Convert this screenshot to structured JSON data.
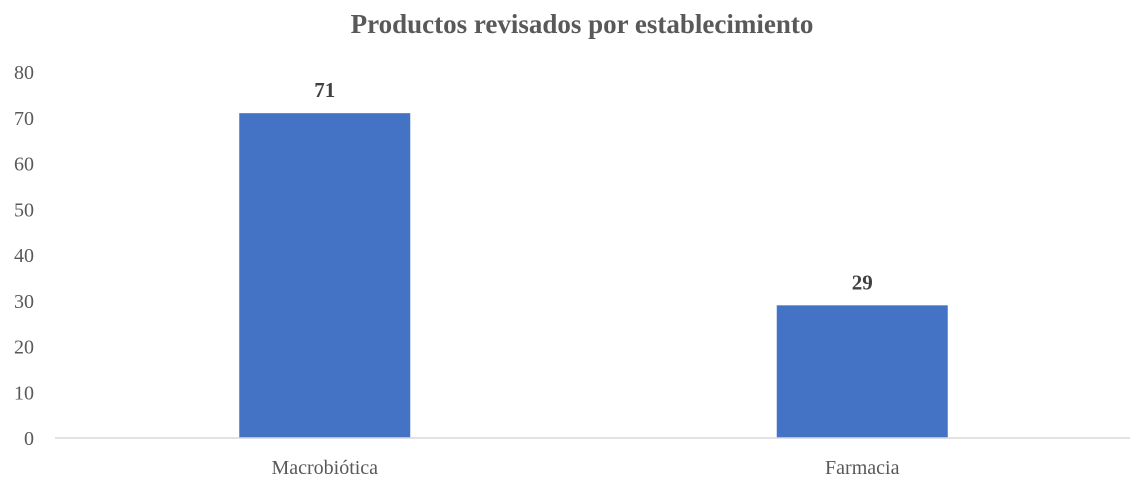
{
  "chart_data": {
    "type": "bar",
    "title": "Productos revisados por establecimiento",
    "xlabel": "",
    "ylabel": "",
    "categories": [
      "Macrobiótica",
      "Farmacia"
    ],
    "values": [
      71,
      29
    ],
    "data_labels": [
      "71",
      "29"
    ],
    "yticks": [
      "0",
      "10",
      "20",
      "30",
      "40",
      "50",
      "60",
      "70",
      "80"
    ],
    "ylim": [
      0,
      80
    ],
    "grid": false,
    "legend": "none",
    "bar_color": "#4472C4"
  }
}
